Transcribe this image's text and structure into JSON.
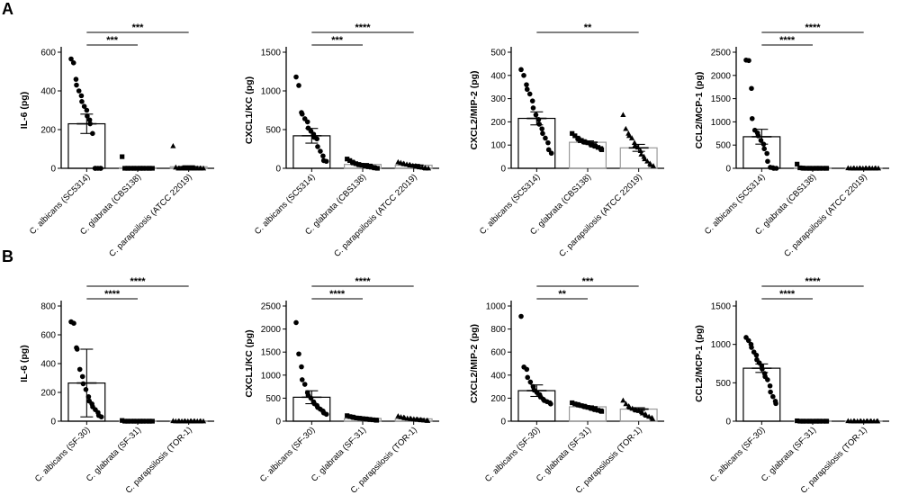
{
  "panels": [
    "A",
    "B"
  ],
  "chart_data": [
    {
      "type": "bar",
      "panel": "A",
      "row": 0,
      "col": 0,
      "ylabel": "IL-6 (pg)",
      "ylim": [
        0,
        600
      ],
      "yticks": [
        0,
        200,
        400,
        600
      ],
      "categories": [
        "C. albicans (SC5314)",
        "C. glabrata (CBS138)",
        "C. parapsilosis (ATCC 22019)"
      ],
      "markers": [
        "circle",
        "square",
        "triangle"
      ],
      "means": [
        230,
        3,
        8
      ],
      "errors": [
        50,
        2,
        5
      ],
      "points": [
        [
          565,
          545,
          460,
          430,
          400,
          375,
          345,
          320,
          300,
          270,
          250,
          230,
          180,
          0,
          0,
          0,
          0,
          0
        ],
        [
          60,
          0,
          0,
          0,
          0,
          0,
          0,
          0,
          0,
          0,
          0,
          0,
          0,
          0,
          0,
          0
        ],
        [
          115,
          5,
          0,
          0,
          0,
          0,
          0,
          0,
          0,
          0,
          0,
          0,
          0,
          0,
          0,
          0
        ]
      ],
      "comparisons": [
        {
          "from": 0,
          "to": 1,
          "label": "***"
        },
        {
          "from": 0,
          "to": 2,
          "label": "***"
        }
      ]
    },
    {
      "type": "bar",
      "panel": "A",
      "row": 0,
      "col": 1,
      "ylabel": "CXCL1/KC (pg)",
      "ylim": [
        0,
        1500
      ],
      "yticks": [
        0,
        500,
        1000,
        1500
      ],
      "categories": [
        "C. albicans (SC5314)",
        "C. glabrata (CBS138)",
        "C. parapsilosis (ATCC 22019)"
      ],
      "markers": [
        "circle",
        "square",
        "triangle"
      ],
      "means": [
        420,
        50,
        40
      ],
      "errors": [
        95,
        12,
        10
      ],
      "points": [
        [
          1180,
          1070,
          720,
          700,
          640,
          600,
          520,
          480,
          440,
          400,
          380,
          280,
          220,
          160,
          100,
          90
        ],
        [
          120,
          100,
          80,
          70,
          60,
          50,
          45,
          40,
          35,
          30,
          25,
          20,
          15,
          10,
          5,
          0
        ],
        [
          80,
          70,
          60,
          55,
          50,
          45,
          40,
          35,
          30,
          25,
          20,
          15,
          10,
          5,
          0,
          0
        ]
      ],
      "comparisons": [
        {
          "from": 0,
          "to": 1,
          "label": "***"
        },
        {
          "from": 0,
          "to": 2,
          "label": "****"
        }
      ]
    },
    {
      "type": "bar",
      "panel": "A",
      "row": 0,
      "col": 2,
      "ylabel": "CXCL2/MIP-2 (pg)",
      "ylim": [
        0,
        500
      ],
      "yticks": [
        0,
        100,
        200,
        300,
        400,
        500
      ],
      "categories": [
        "C. albicans (SC5314)",
        "C. glabrata (CBS138)",
        "C. parapsilosis (ATCC 22019)"
      ],
      "markers": [
        "circle",
        "square",
        "triangle"
      ],
      "means": [
        215,
        112,
        88
      ],
      "errors": [
        28,
        6,
        15
      ],
      "points": [
        [
          425,
          400,
          360,
          340,
          320,
          290,
          260,
          230,
          210,
          190,
          170,
          150,
          130,
          110,
          80,
          65
        ],
        [
          150,
          140,
          130,
          125,
          120,
          115,
          112,
          110,
          105,
          100,
          98,
          95,
          90,
          85,
          80
        ],
        [
          230,
          170,
          150,
          140,
          130,
          110,
          100,
          90,
          75,
          60,
          50,
          40,
          30,
          20,
          15,
          10
        ]
      ],
      "comparisons": [
        {
          "from": 0,
          "to": 2,
          "label": "**"
        }
      ]
    },
    {
      "type": "bar",
      "panel": "A",
      "row": 0,
      "col": 3,
      "ylabel": "CCL2/MCP-1 (pg)",
      "ylim": [
        0,
        2500
      ],
      "yticks": [
        0,
        500,
        1000,
        1500,
        2000,
        2500
      ],
      "categories": [
        "C. albicans (SC5314)",
        "C. glabrata (CBS138)",
        "C. parapsilosis (ATCC 22019)"
      ],
      "markers": [
        "circle",
        "square",
        "triangle"
      ],
      "means": [
        680,
        10,
        5
      ],
      "errors": [
        160,
        5,
        2
      ],
      "points": [
        [
          2330,
          2320,
          1720,
          1070,
          820,
          760,
          700,
          600,
          520,
          420,
          320,
          150,
          20,
          10,
          0,
          0
        ],
        [
          90,
          10,
          5,
          0,
          0,
          0,
          0,
          0,
          0,
          0,
          0,
          0,
          0,
          0,
          0
        ],
        [
          5,
          0,
          0,
          0,
          0,
          0,
          0,
          0,
          0,
          0,
          0,
          0,
          0,
          0,
          0,
          0
        ]
      ],
      "comparisons": [
        {
          "from": 0,
          "to": 1,
          "label": "****"
        },
        {
          "from": 0,
          "to": 2,
          "label": "****"
        }
      ]
    },
    {
      "type": "bar",
      "panel": "B",
      "row": 1,
      "col": 0,
      "ylabel": "IL-6 (pg)",
      "ylim": [
        0,
        800
      ],
      "yticks": [
        0,
        200,
        400,
        600,
        800
      ],
      "categories": [
        "C. albicans (SF-30)",
        "C. glabrata (SF-31)",
        "C. parapsilosis (TOR-1)"
      ],
      "markers": [
        "circle",
        "square",
        "triangle"
      ],
      "means": [
        265,
        3,
        2
      ],
      "errors": [
        235,
        1,
        1
      ],
      "points": [
        [
          690,
          680,
          510,
          500,
          360,
          310,
          260,
          220,
          170,
          140,
          120,
          100,
          80,
          60,
          40,
          30
        ],
        [
          5,
          0,
          0,
          0,
          0,
          0,
          0,
          0,
          0,
          0,
          0,
          0,
          0,
          0,
          0,
          0
        ],
        [
          2,
          0,
          0,
          0,
          0,
          0,
          0,
          0,
          0,
          0,
          0,
          0,
          0,
          0,
          0,
          0
        ]
      ],
      "comparisons": [
        {
          "from": 0,
          "to": 1,
          "label": "****"
        },
        {
          "from": 0,
          "to": 2,
          "label": "****"
        }
      ]
    },
    {
      "type": "bar",
      "panel": "B",
      "row": 1,
      "col": 1,
      "ylabel": "CXCL1/KC (pg)",
      "ylim": [
        0,
        2500
      ],
      "yticks": [
        0,
        500,
        1000,
        1500,
        2000,
        2500
      ],
      "categories": [
        "C. albicans (SF-30)",
        "C. glabrata (SF-31)",
        "C. parapsilosis (TOR-1)"
      ],
      "markers": [
        "circle",
        "square",
        "triangle"
      ],
      "means": [
        520,
        60,
        50
      ],
      "errors": [
        140,
        8,
        8
      ],
      "points": [
        [
          2140,
          1460,
          1180,
          900,
          800,
          620,
          560,
          500,
          420,
          380,
          340,
          300,
          260,
          220,
          180,
          150
        ],
        [
          120,
          100,
          90,
          80,
          70,
          65,
          60,
          55,
          50,
          45,
          40,
          35,
          30,
          25,
          20
        ],
        [
          110,
          90,
          80,
          70,
          60,
          55,
          50,
          45,
          40,
          35,
          30,
          25,
          20,
          15,
          10
        ]
      ],
      "comparisons": [
        {
          "from": 0,
          "to": 1,
          "label": "****"
        },
        {
          "from": 0,
          "to": 2,
          "label": "****"
        }
      ]
    },
    {
      "type": "bar",
      "panel": "B",
      "row": 1,
      "col": 2,
      "ylabel": "CXCL2/MIP-2 (pg)",
      "ylim": [
        0,
        1000
      ],
      "yticks": [
        0,
        200,
        400,
        600,
        800,
        1000
      ],
      "categories": [
        "C. albicans (SF-30)",
        "C. glabrata (SF-31)",
        "C. parapsilosis (TOR-1)"
      ],
      "markers": [
        "circle",
        "square",
        "triangle"
      ],
      "means": [
        265,
        125,
        105
      ],
      "errors": [
        50,
        8,
        12
      ],
      "points": [
        [
          910,
          470,
          450,
          380,
          340,
          300,
          270,
          250,
          230,
          210,
          190,
          180,
          170,
          160,
          150
        ],
        [
          160,
          150,
          145,
          140,
          135,
          130,
          125,
          120,
          115,
          110,
          105,
          100,
          95,
          90,
          85
        ],
        [
          180,
          150,
          130,
          120,
          110,
          100,
          95,
          90,
          80,
          70,
          60,
          50,
          40,
          30,
          20
        ]
      ],
      "comparisons": [
        {
          "from": 0,
          "to": 1,
          "label": "**"
        },
        {
          "from": 0,
          "to": 2,
          "label": "***"
        }
      ]
    },
    {
      "type": "bar",
      "panel": "B",
      "row": 1,
      "col": 3,
      "ylabel": "CCL2/MCP-1 (pg)",
      "ylim": [
        0,
        1500
      ],
      "yticks": [
        0,
        500,
        1000,
        1500
      ],
      "categories": [
        "C. albicans (SF-30)",
        "C. glabrata (SF-31)",
        "C. parapsilosis (TOR-1)"
      ],
      "markers": [
        "circle",
        "square",
        "triangle"
      ],
      "means": [
        690,
        5,
        3
      ],
      "errors": [
        55,
        2,
        1
      ],
      "points": [
        [
          1090,
          1050,
          1000,
          960,
          900,
          860,
          800,
          760,
          720,
          680,
          620,
          580,
          540,
          460,
          380,
          320,
          260,
          230
        ],
        [
          5,
          0,
          0,
          0,
          0,
          0,
          0,
          0,
          0,
          0,
          0,
          0,
          0,
          0,
          0
        ],
        [
          3,
          0,
          0,
          0,
          0,
          0,
          0,
          0,
          0,
          0,
          0,
          0,
          0,
          0,
          0
        ]
      ],
      "comparisons": [
        {
          "from": 0,
          "to": 1,
          "label": "****"
        },
        {
          "from": 0,
          "to": 2,
          "label": "****"
        }
      ]
    }
  ]
}
